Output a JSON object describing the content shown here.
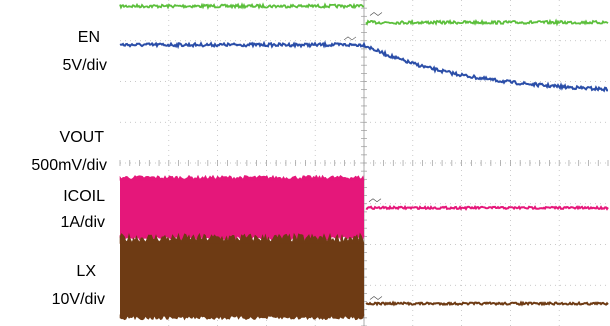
{
  "chart_data": {
    "type": "line",
    "x_divisions": 10,
    "y_divisions": 8,
    "grid": "dotted",
    "event_division": 5,
    "series": [
      {
        "key": "en",
        "name": "EN",
        "scale": "5V/div",
        "color": "#5cbf3c",
        "before_level_div": 0.15,
        "after_level_div": 0.55,
        "shape": "step"
      },
      {
        "key": "vout",
        "name": "VOUT",
        "scale": "500mV/div",
        "color": "#2b4ea8",
        "before_level_div": 1.1,
        "end_level_div": 2.3,
        "shape": "exponential_decay"
      },
      {
        "key": "icoil",
        "name": "ICOIL",
        "scale": "1A/div",
        "color": "#e5177a",
        "before_low_div": 4.4,
        "before_high_div": 5.8,
        "after_level_div": 5.1,
        "shape": "switching_then_flat"
      },
      {
        "key": "lx",
        "name": "LX",
        "scale": "10V/div",
        "color": "#6e3b14",
        "before_low_div": 5.95,
        "before_high_div": 7.75,
        "after_level_div": 7.45,
        "shape": "switching_then_flat"
      }
    ]
  }
}
